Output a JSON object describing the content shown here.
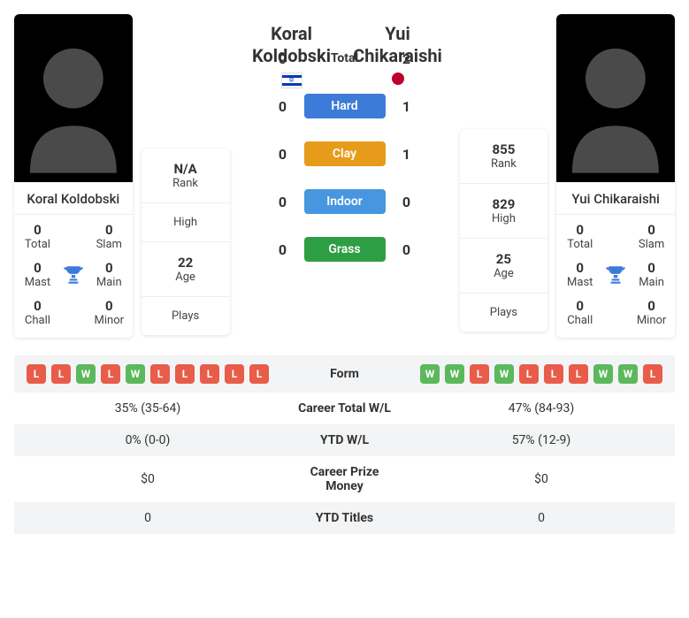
{
  "player1": {
    "name_first": "Koral",
    "name_last": "Koldobski",
    "full_name": "Koral Koldobski",
    "country": "il",
    "rank": "N/A",
    "high": "",
    "age": "22",
    "plays": "",
    "titles": {
      "total": "0",
      "slam": "0",
      "mast": "0",
      "main": "0",
      "chall": "0",
      "minor": "0"
    },
    "form": [
      "L",
      "L",
      "W",
      "L",
      "W",
      "L",
      "L",
      "L",
      "L",
      "L"
    ]
  },
  "player2": {
    "name_first": "Yui",
    "name_last": "Chikaraishi",
    "full_name": "Yui Chikaraishi",
    "country": "jp",
    "rank": "855",
    "high": "829",
    "age": "25",
    "plays": "",
    "titles": {
      "total": "0",
      "slam": "0",
      "mast": "0",
      "main": "0",
      "chall": "0",
      "minor": "0"
    },
    "form": [
      "W",
      "W",
      "L",
      "W",
      "L",
      "L",
      "L",
      "W",
      "W",
      "L"
    ]
  },
  "labels": {
    "rank": "Rank",
    "high": "High",
    "age": "Age",
    "plays": "Plays",
    "total": "Total",
    "slam": "Slam",
    "mast": "Mast",
    "main": "Main",
    "chall": "Chall",
    "minor": "Minor",
    "h2h_total": "Total",
    "hard": "Hard",
    "clay": "Clay",
    "indoor": "Indoor",
    "grass": "Grass",
    "form": "Form",
    "career_wl": "Career Total W/L",
    "ytd_wl": "YTD W/L",
    "prize": "Career Prize Money",
    "ytd_titles": "YTD Titles"
  },
  "h2h": {
    "total": {
      "p1": "0",
      "p2": "2"
    },
    "hard": {
      "p1": "0",
      "p2": "1"
    },
    "clay": {
      "p1": "0",
      "p2": "1"
    },
    "indoor": {
      "p1": "0",
      "p2": "0"
    },
    "grass": {
      "p1": "0",
      "p2": "0"
    }
  },
  "compare": {
    "career_wl": {
      "p1": "35% (35-64)",
      "p2": "47% (84-93)"
    },
    "ytd_wl": {
      "p1": "0% (0-0)",
      "p2": "57% (12-9)"
    },
    "prize": {
      "p1": "$0",
      "p2": "$0"
    },
    "ytd_titles": {
      "p1": "0",
      "p2": "0"
    }
  },
  "colors": {
    "hard": "#3d7bd9",
    "clay": "#e69b1a",
    "indoor": "#4696e0",
    "grass": "#2e9e44",
    "win": "#5cb85c",
    "loss": "#e85c4a",
    "trophy": "#3d7bd9"
  }
}
